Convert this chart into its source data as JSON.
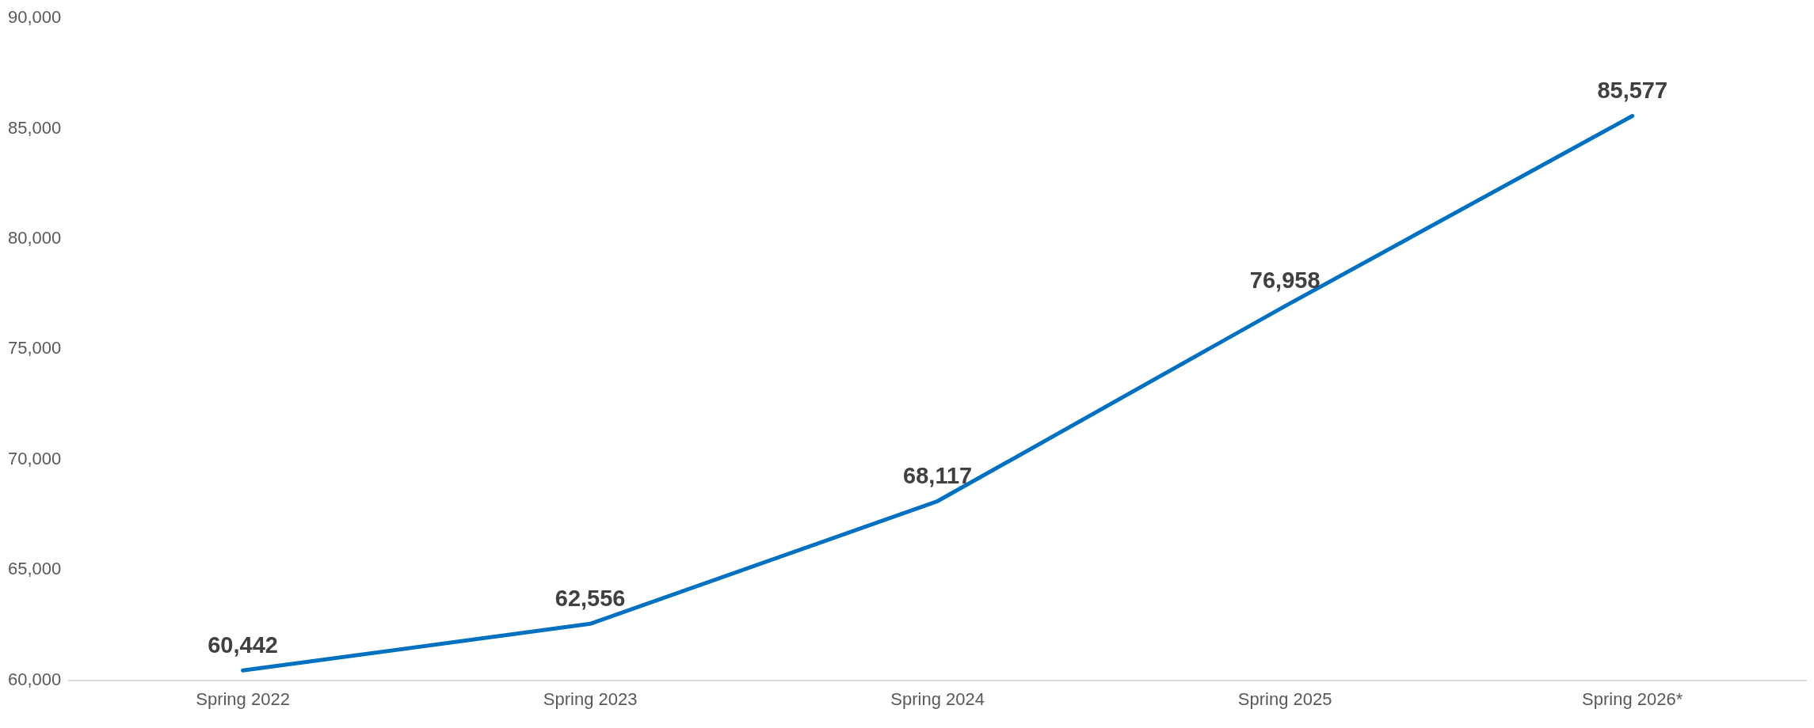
{
  "chart_data": {
    "type": "line",
    "categories": [
      "Spring 2022",
      "Spring 2023",
      "Spring 2024",
      "Spring 2025",
      "Spring 2026*"
    ],
    "series": [
      {
        "color": "#0070c0",
        "values": [
          60442,
          62556,
          68117,
          76958,
          85577
        ],
        "value_labels": [
          "60,442",
          "62,556",
          "68,117",
          "76,958",
          "85,577"
        ]
      }
    ],
    "ylim": [
      60000,
      90000
    ],
    "yticks": [
      {
        "value": 60000,
        "label": "60,000"
      },
      {
        "value": 65000,
        "label": "65,000"
      },
      {
        "value": 70000,
        "label": "70,000"
      },
      {
        "value": 75000,
        "label": "75,000"
      },
      {
        "value": 80000,
        "label": "80,000"
      },
      {
        "value": 85000,
        "label": "85,000"
      },
      {
        "value": 90000,
        "label": "90,000"
      }
    ],
    "grid": false,
    "legend": false,
    "marker": "none",
    "line_style": "solid"
  }
}
